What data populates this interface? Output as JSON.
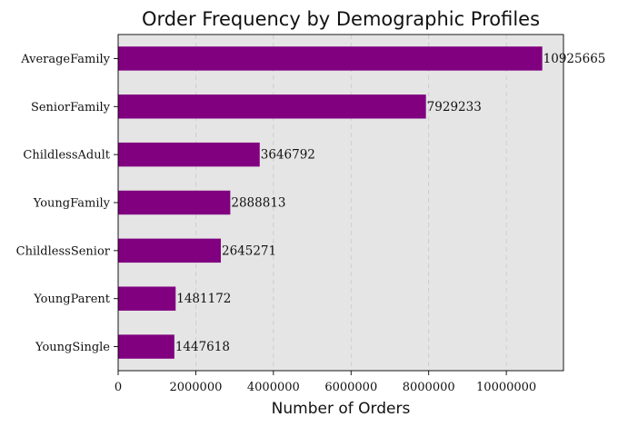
{
  "chart_data": {
    "type": "bar",
    "orientation": "horizontal",
    "title": "Order Frequency by Demographic Profiles",
    "xlabel": "Number of Orders",
    "ylabel": "",
    "categories": [
      "AverageFamily",
      "SeniorFamily",
      "ChildlessAdult",
      "YoungFamily",
      "ChildlessSenior",
      "YoungParent",
      "YoungSingle"
    ],
    "values": [
      10925665,
      7929233,
      3646792,
      2888813,
      2645271,
      1481172,
      1447618
    ],
    "xlim": [
      0,
      11471948
    ],
    "xticks": [
      0,
      2000000,
      4000000,
      6000000,
      8000000,
      10000000
    ],
    "xtick_labels": [
      "0",
      "2000000",
      "4000000",
      "6000000",
      "8000000",
      "10000000"
    ],
    "grid": "x-dashed",
    "bar_color": "#800080",
    "plot_background": "#e5e5e5"
  }
}
